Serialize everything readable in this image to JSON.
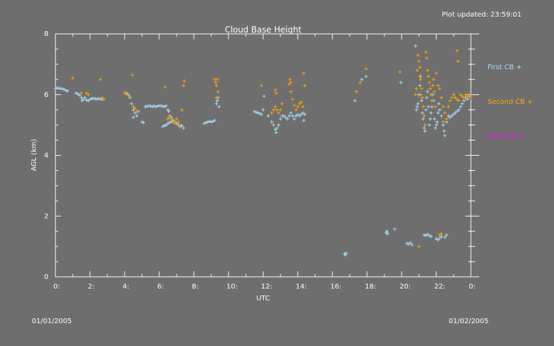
{
  "status": {
    "plot_updated": "Plot updated: 23:59:01"
  },
  "dates": {
    "start": "01/01/2005",
    "end": "01/02/2005"
  },
  "colors": {
    "background": "#6e6e6e",
    "axes": "#ffffff",
    "first_cb": "#a8dcf2",
    "second_cb": "#ffa500",
    "third_cb": "#ff00ff"
  },
  "chart_data": {
    "type": "scatter",
    "title": "Cloud Base Height",
    "xlabel": "UTC",
    "ylabel": "AGL (km)",
    "xlim": [
      0,
      24
    ],
    "ylim": [
      0,
      8
    ],
    "x_ticks": [
      {
        "v": 0,
        "label": "0:"
      },
      {
        "v": 2,
        "label": "2:"
      },
      {
        "v": 4,
        "label": "4:"
      },
      {
        "v": 6,
        "label": "6:"
      },
      {
        "v": 8,
        "label": "8:"
      },
      {
        "v": 10,
        "label": "10:"
      },
      {
        "v": 12,
        "label": "12:"
      },
      {
        "v": 14,
        "label": "14:"
      },
      {
        "v": 16,
        "label": "16:"
      },
      {
        "v": 18,
        "label": "18:"
      },
      {
        "v": 20,
        "label": "20:"
      },
      {
        "v": 22,
        "label": "22:"
      },
      {
        "v": 24,
        "label": "0:"
      }
    ],
    "y_ticks": [
      {
        "v": 0,
        "label": "0"
      },
      {
        "v": 2,
        "label": "2"
      },
      {
        "v": 4,
        "label": "4"
      },
      {
        "v": 6,
        "label": "6"
      },
      {
        "v": 8,
        "label": "8"
      }
    ],
    "legend_position": "right",
    "series": [
      {
        "name": "First CB",
        "marker": "+",
        "color": "#a8dcf2",
        "points": [
          [
            0.0,
            6.2
          ],
          [
            0.1,
            6.22
          ],
          [
            0.2,
            6.21
          ],
          [
            0.3,
            6.2
          ],
          [
            0.4,
            6.19
          ],
          [
            0.5,
            6.17
          ],
          [
            0.6,
            6.14
          ],
          [
            0.7,
            6.12
          ],
          [
            1.2,
            6.05
          ],
          [
            1.3,
            6.02
          ],
          [
            1.4,
            5.98
          ],
          [
            1.5,
            5.9
          ],
          [
            1.55,
            5.8
          ],
          [
            1.6,
            5.85
          ],
          [
            1.7,
            5.9
          ],
          [
            1.8,
            5.82
          ],
          [
            1.9,
            5.8
          ],
          [
            2.0,
            5.85
          ],
          [
            2.1,
            5.87
          ],
          [
            2.2,
            5.88
          ],
          [
            2.3,
            5.86
          ],
          [
            2.4,
            5.85
          ],
          [
            2.5,
            5.87
          ],
          [
            2.6,
            5.86
          ],
          [
            2.7,
            5.84
          ],
          [
            4.1,
            6.05
          ],
          [
            4.2,
            6.0
          ],
          [
            4.3,
            5.9
          ],
          [
            4.4,
            5.7
          ],
          [
            4.5,
            5.5
          ],
          [
            4.6,
            5.4
          ],
          [
            4.7,
            5.3
          ],
          [
            4.5,
            5.25
          ],
          [
            4.8,
            5.45
          ],
          [
            5.0,
            5.1
          ],
          [
            5.1,
            5.08
          ],
          [
            5.2,
            5.6
          ],
          [
            5.3,
            5.62
          ],
          [
            5.4,
            5.63
          ],
          [
            5.5,
            5.62
          ],
          [
            5.6,
            5.6
          ],
          [
            5.7,
            5.63
          ],
          [
            5.8,
            5.6
          ],
          [
            5.9,
            5.62
          ],
          [
            6.0,
            5.64
          ],
          [
            6.1,
            5.63
          ],
          [
            6.2,
            5.62
          ],
          [
            6.3,
            5.6
          ],
          [
            6.4,
            5.63
          ],
          [
            6.5,
            5.5
          ],
          [
            6.2,
            4.95
          ],
          [
            6.3,
            4.98
          ],
          [
            6.4,
            5.0
          ],
          [
            6.5,
            5.05
          ],
          [
            6.6,
            5.08
          ],
          [
            6.7,
            5.12
          ],
          [
            6.8,
            5.15
          ],
          [
            6.9,
            5.1
          ],
          [
            7.0,
            5.05
          ],
          [
            7.1,
            5.0
          ],
          [
            7.2,
            4.95
          ],
          [
            7.3,
            4.98
          ],
          [
            7.4,
            4.9
          ],
          [
            6.55,
            5.45
          ],
          [
            6.6,
            5.3
          ],
          [
            6.7,
            5.25
          ],
          [
            8.6,
            5.05
          ],
          [
            8.7,
            5.08
          ],
          [
            8.8,
            5.1
          ],
          [
            8.9,
            5.12
          ],
          [
            9.0,
            5.1
          ],
          [
            9.1,
            5.12
          ],
          [
            9.2,
            5.15
          ],
          [
            9.3,
            5.7
          ],
          [
            9.35,
            5.8
          ],
          [
            9.4,
            5.9
          ],
          [
            9.45,
            5.6
          ],
          [
            11.5,
            5.45
          ],
          [
            11.6,
            5.42
          ],
          [
            11.7,
            5.4
          ],
          [
            11.8,
            5.38
          ],
          [
            11.9,
            5.35
          ],
          [
            12.0,
            5.5
          ],
          [
            12.05,
            5.95
          ],
          [
            12.3,
            5.3
          ],
          [
            12.5,
            5.1
          ],
          [
            12.6,
            5.0
          ],
          [
            12.7,
            4.85
          ],
          [
            12.75,
            4.75
          ],
          [
            12.8,
            4.9
          ],
          [
            12.9,
            5.0
          ],
          [
            13.0,
            5.2
          ],
          [
            13.1,
            5.3
          ],
          [
            13.2,
            5.3
          ],
          [
            13.3,
            5.25
          ],
          [
            13.4,
            5.2
          ],
          [
            13.5,
            5.3
          ],
          [
            13.6,
            5.4
          ],
          [
            13.7,
            5.3
          ],
          [
            13.8,
            5.2
          ],
          [
            13.9,
            5.3
          ],
          [
            14.0,
            5.35
          ],
          [
            14.1,
            5.3
          ],
          [
            14.2,
            5.35
          ],
          [
            14.3,
            5.4
          ],
          [
            14.4,
            5.35
          ],
          [
            14.35,
            5.15
          ],
          [
            16.7,
            0.75
          ],
          [
            16.75,
            0.72
          ],
          [
            16.8,
            0.78
          ],
          [
            17.3,
            5.8
          ],
          [
            17.7,
            6.5
          ],
          [
            17.95,
            6.6
          ],
          [
            19.1,
            1.45
          ],
          [
            19.15,
            1.5
          ],
          [
            19.2,
            1.42
          ],
          [
            19.6,
            1.57
          ],
          [
            19.95,
            6.4
          ],
          [
            20.3,
            1.1
          ],
          [
            20.4,
            1.08
          ],
          [
            20.5,
            1.12
          ],
          [
            20.6,
            1.05
          ],
          [
            20.8,
            7.6
          ],
          [
            20.85,
            5.5
          ],
          [
            20.9,
            5.6
          ],
          [
            20.95,
            5.7
          ],
          [
            21.0,
            6.0
          ],
          [
            21.05,
            6.3
          ],
          [
            21.1,
            6.6
          ],
          [
            21.15,
            5.8
          ],
          [
            21.2,
            5.4
          ],
          [
            21.25,
            5.2
          ],
          [
            21.3,
            4.9
          ],
          [
            21.35,
            4.8
          ],
          [
            21.4,
            5.5
          ],
          [
            21.45,
            5.9
          ],
          [
            21.5,
            6.1
          ],
          [
            21.55,
            5.6
          ],
          [
            21.6,
            5.0
          ],
          [
            21.65,
            5.2
          ],
          [
            21.7,
            5.4
          ],
          [
            21.75,
            5.6
          ],
          [
            21.8,
            6.0
          ],
          [
            21.85,
            5.8
          ],
          [
            21.9,
            5.2
          ],
          [
            21.95,
            4.9
          ],
          [
            22.0,
            5.0
          ],
          [
            22.05,
            5.1
          ],
          [
            22.1,
            5.4
          ],
          [
            22.15,
            5.7
          ],
          [
            22.2,
            5.5
          ],
          [
            22.3,
            5.3
          ],
          [
            22.4,
            5.0
          ],
          [
            22.45,
            4.8
          ],
          [
            22.5,
            4.65
          ],
          [
            22.6,
            5.1
          ],
          [
            22.7,
            5.3
          ],
          [
            22.8,
            5.25
          ],
          [
            22.9,
            5.3
          ],
          [
            23.0,
            5.35
          ],
          [
            23.1,
            5.4
          ],
          [
            23.2,
            5.45
          ],
          [
            23.3,
            5.5
          ],
          [
            23.4,
            5.6
          ],
          [
            23.5,
            5.7
          ],
          [
            23.6,
            5.8
          ],
          [
            23.7,
            5.9
          ],
          [
            23.8,
            5.85
          ],
          [
            23.9,
            5.95
          ],
          [
            24.0,
            6.0
          ],
          [
            21.3,
            1.38
          ],
          [
            21.4,
            1.36
          ],
          [
            21.5,
            1.4
          ],
          [
            21.6,
            1.35
          ],
          [
            21.7,
            1.33
          ],
          [
            22.0,
            1.25
          ],
          [
            22.1,
            1.22
          ],
          [
            22.2,
            1.28
          ],
          [
            22.3,
            1.32
          ],
          [
            22.5,
            1.3
          ],
          [
            22.6,
            1.38
          ]
        ]
      },
      {
        "name": "Second CB",
        "marker": "+",
        "color": "#ffa500",
        "points": [
          [
            1.0,
            6.55
          ],
          [
            1.5,
            6.05
          ],
          [
            1.8,
            6.05
          ],
          [
            1.9,
            6.0
          ],
          [
            2.6,
            6.5
          ],
          [
            2.7,
            5.9
          ],
          [
            2.8,
            5.85
          ],
          [
            4.0,
            6.05
          ],
          [
            4.1,
            6.02
          ],
          [
            4.3,
            5.95
          ],
          [
            4.45,
            6.65
          ],
          [
            4.5,
            5.6
          ],
          [
            4.6,
            5.55
          ],
          [
            4.7,
            5.45
          ],
          [
            6.5,
            5.2
          ],
          [
            6.6,
            5.25
          ],
          [
            6.7,
            5.2
          ],
          [
            6.8,
            5.1
          ],
          [
            6.9,
            5.05
          ],
          [
            7.0,
            5.2
          ],
          [
            7.1,
            5.1
          ],
          [
            7.2,
            5.0
          ],
          [
            7.3,
            5.5
          ],
          [
            7.4,
            6.3
          ],
          [
            7.45,
            6.45
          ],
          [
            6.35,
            6.25
          ],
          [
            9.2,
            6.5
          ],
          [
            9.25,
            6.4
          ],
          [
            9.3,
            6.3
          ],
          [
            9.35,
            6.5
          ],
          [
            9.4,
            6.1
          ],
          [
            9.3,
            5.9
          ],
          [
            11.9,
            6.3
          ],
          [
            12.5,
            5.4
          ],
          [
            12.6,
            5.5
          ],
          [
            12.7,
            5.6
          ],
          [
            12.8,
            5.5
          ],
          [
            12.9,
            5.4
          ],
          [
            13.0,
            5.5
          ],
          [
            13.1,
            5.7
          ],
          [
            12.7,
            6.15
          ],
          [
            12.75,
            6.05
          ],
          [
            13.5,
            6.35
          ],
          [
            13.55,
            6.5
          ],
          [
            13.6,
            6.4
          ],
          [
            13.6,
            6.1
          ],
          [
            13.7,
            5.85
          ],
          [
            13.8,
            5.65
          ],
          [
            13.9,
            5.5
          ],
          [
            14.0,
            5.6
          ],
          [
            14.1,
            5.7
          ],
          [
            14.2,
            5.75
          ],
          [
            14.3,
            5.6
          ],
          [
            14.4,
            6.3
          ],
          [
            14.35,
            6.7
          ],
          [
            17.4,
            6.1
          ],
          [
            17.6,
            6.4
          ],
          [
            17.95,
            6.85
          ],
          [
            19.9,
            6.75
          ],
          [
            20.8,
            6.0
          ],
          [
            20.85,
            6.2
          ],
          [
            20.9,
            6.8
          ],
          [
            20.95,
            7.3
          ],
          [
            21.0,
            7.1
          ],
          [
            21.05,
            6.9
          ],
          [
            21.1,
            6.5
          ],
          [
            21.15,
            6.2
          ],
          [
            21.2,
            5.9
          ],
          [
            21.25,
            5.6
          ],
          [
            21.3,
            5.3
          ],
          [
            21.35,
            5.0
          ],
          [
            21.05,
            6.6
          ],
          [
            21.1,
            6.0
          ],
          [
            21.4,
            7.4
          ],
          [
            21.45,
            7.2
          ],
          [
            21.5,
            6.8
          ],
          [
            21.55,
            6.6
          ],
          [
            21.6,
            6.4
          ],
          [
            21.65,
            6.2
          ],
          [
            21.7,
            6.0
          ],
          [
            21.75,
            5.8
          ],
          [
            21.8,
            6.3
          ],
          [
            21.85,
            6.5
          ],
          [
            21.9,
            6.1
          ],
          [
            21.95,
            5.6
          ],
          [
            22.0,
            6.7
          ],
          [
            22.1,
            6.3
          ],
          [
            22.2,
            6.2
          ],
          [
            22.3,
            5.9
          ],
          [
            22.4,
            5.6
          ],
          [
            22.5,
            5.4
          ],
          [
            22.6,
            5.2
          ],
          [
            22.7,
            5.6
          ],
          [
            22.8,
            5.8
          ],
          [
            22.9,
            5.9
          ],
          [
            23.0,
            6.0
          ],
          [
            23.1,
            5.9
          ],
          [
            23.2,
            5.85
          ],
          [
            23.3,
            5.8
          ],
          [
            23.4,
            6.0
          ],
          [
            23.5,
            5.95
          ],
          [
            23.6,
            5.9
          ],
          [
            23.7,
            6.0
          ],
          [
            23.8,
            5.95
          ],
          [
            23.9,
            6.0
          ],
          [
            24.0,
            5.9
          ],
          [
            23.2,
            7.45
          ],
          [
            23.25,
            7.1
          ],
          [
            22.4,
            5.1
          ],
          [
            22.3,
            1.42
          ],
          [
            21.0,
            1.0
          ],
          [
            22.2,
            1.38
          ]
        ]
      },
      {
        "name": "Third CB",
        "marker": "+",
        "color": "#ff00ff",
        "points": []
      }
    ]
  }
}
